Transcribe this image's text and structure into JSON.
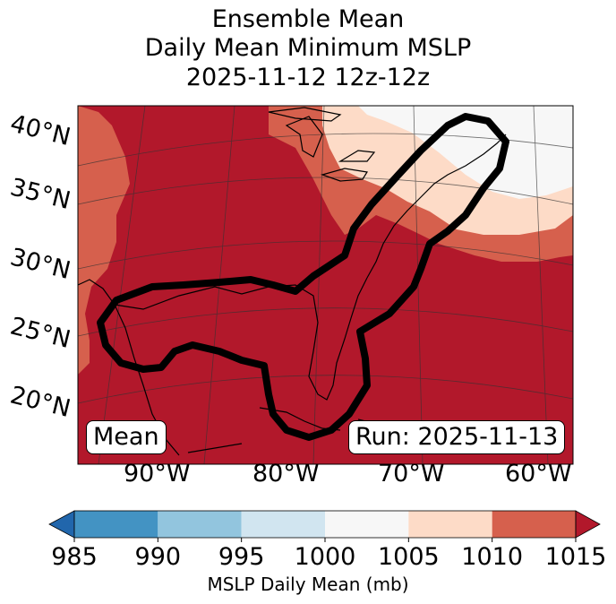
{
  "title": {
    "line1": "Ensemble Mean",
    "line2": "Daily Mean Minimum MSLP",
    "line3": "2025-11-12 12z-12z"
  },
  "map": {
    "lat_labels": [
      "40°N",
      "35°N",
      "30°N",
      "25°N",
      "20°N"
    ],
    "lon_labels": [
      "90°W",
      "80°W",
      "70°W",
      "60°W"
    ],
    "mean_badge": "Mean",
    "run_badge": "Run: 2025-11-13",
    "contour_line_color": "#000000"
  },
  "colorbar": {
    "label": "MSLP Daily Mean (mb)",
    "ticks": [
      "985",
      "990",
      "995",
      "1000",
      "1005",
      "1010",
      "1015"
    ],
    "colors": [
      "#4393c3",
      "#92c5de",
      "#d1e5f0",
      "#f7f7f7",
      "#fddbc7",
      "#d6604d",
      "#b2182b"
    ],
    "under_color": "#2166ac",
    "over_color": "#b2182b"
  }
}
